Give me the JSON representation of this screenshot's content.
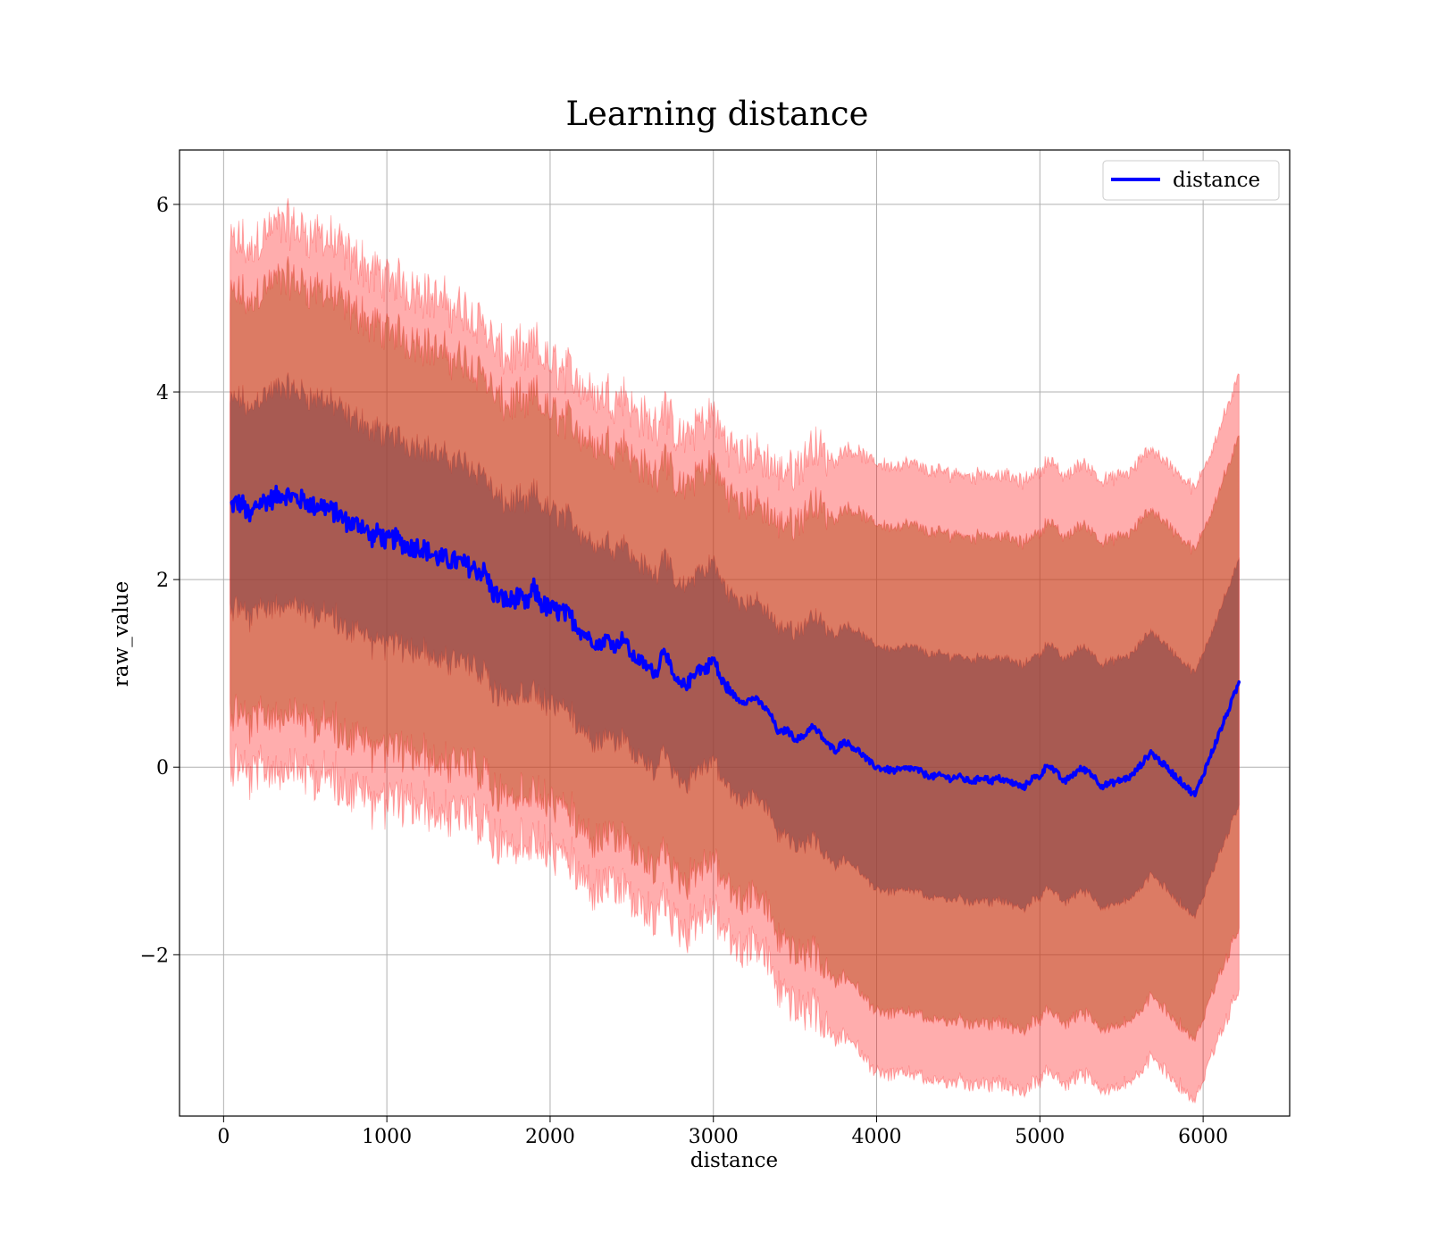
{
  "chart_data": {
    "type": "line",
    "title": "Learning distance",
    "xlabel": "distance",
    "ylabel": "raw_value",
    "xlim": [
      -270,
      6530
    ],
    "ylim": [
      -3.72,
      6.58
    ],
    "x_ticks": [
      0,
      1000,
      2000,
      3000,
      4000,
      5000,
      6000
    ],
    "y_ticks": [
      -2,
      0,
      2,
      4,
      6
    ],
    "x_tick_labels": [
      "0",
      "1000",
      "2000",
      "3000",
      "4000",
      "5000",
      "6000"
    ],
    "y_tick_labels": [
      "−2",
      "0",
      "2",
      "4",
      "6"
    ],
    "grid": true,
    "legend": {
      "position": "top-right",
      "entries": [
        "distance"
      ]
    },
    "colors": {
      "line": "#0000ff",
      "band": "#ff0000",
      "band_alpha": 0.32
    },
    "series": [
      {
        "name": "distance",
        "x": [
          40,
          80,
          120,
          160,
          200,
          250,
          300,
          350,
          400,
          450,
          500,
          550,
          600,
          650,
          700,
          750,
          800,
          850,
          900,
          950,
          1000,
          1050,
          1100,
          1150,
          1200,
          1250,
          1300,
          1350,
          1400,
          1450,
          1500,
          1550,
          1600,
          1650,
          1700,
          1750,
          1800,
          1850,
          1900,
          1950,
          2000,
          2050,
          2100,
          2150,
          2200,
          2250,
          2300,
          2350,
          2400,
          2450,
          2500,
          2550,
          2600,
          2650,
          2700,
          2750,
          2800,
          2850,
          2900,
          2950,
          3000,
          3050,
          3100,
          3150,
          3200,
          3250,
          3300,
          3350,
          3400,
          3450,
          3500,
          3550,
          3600,
          3650,
          3700,
          3750,
          3800,
          3850,
          3900,
          3950,
          4000,
          4050,
          4100,
          4150,
          4200,
          4250,
          4300,
          4350,
          4400,
          4450,
          4500,
          4550,
          4600,
          4650,
          4700,
          4750,
          4800,
          4850,
          4900,
          4950,
          5000,
          5050,
          5100,
          5150,
          5200,
          5250,
          5300,
          5380,
          5460,
          5560,
          5680,
          5950,
          6220
        ],
        "y": [
          2.78,
          2.82,
          2.8,
          2.64,
          2.8,
          2.84,
          2.86,
          2.92,
          2.9,
          2.86,
          2.84,
          2.78,
          2.8,
          2.74,
          2.7,
          2.62,
          2.58,
          2.6,
          2.44,
          2.5,
          2.4,
          2.44,
          2.38,
          2.34,
          2.36,
          2.3,
          2.24,
          2.22,
          2.2,
          2.18,
          2.14,
          2.1,
          2.08,
          1.86,
          1.8,
          1.76,
          1.82,
          1.72,
          1.9,
          1.74,
          1.68,
          1.66,
          1.62,
          1.56,
          1.44,
          1.36,
          1.3,
          1.38,
          1.28,
          1.4,
          1.18,
          1.14,
          1.06,
          1.0,
          1.3,
          0.96,
          0.86,
          0.9,
          1.06,
          1.04,
          1.16,
          0.92,
          0.82,
          0.72,
          0.7,
          0.74,
          0.66,
          0.56,
          0.36,
          0.4,
          0.3,
          0.32,
          0.44,
          0.36,
          0.24,
          0.18,
          0.28,
          0.22,
          0.16,
          0.06,
          0.0,
          -0.02,
          -0.04,
          -0.03,
          -0.01,
          -0.03,
          -0.08,
          -0.1,
          -0.09,
          -0.12,
          -0.1,
          -0.14,
          -0.15,
          -0.1,
          -0.15,
          -0.12,
          -0.15,
          -0.18,
          -0.22,
          -0.12,
          -0.1,
          0.04,
          -0.06,
          -0.16,
          -0.08,
          -0.02,
          -0.04,
          -0.2,
          -0.16,
          -0.1,
          0.16,
          -0.3,
          0.9
        ]
      }
    ],
    "bands": {
      "x": [
        40,
        300,
        600,
        900,
        1200,
        1500,
        1650,
        1900,
        2200,
        2500,
        2800,
        3050,
        3300,
        3600,
        4000,
        4500,
        4800,
        5000,
        5300,
        5560,
        5680,
        5950,
        6220
      ],
      "sd": [
        1.1,
        1.15,
        1.15,
        1.12,
        1.1,
        1.08,
        1.05,
        1.05,
        1.05,
        1.05,
        1.05,
        1.05,
        1.05,
        1.2,
        1.3,
        1.3,
        1.3,
        1.3,
        1.3,
        1.3,
        1.3,
        1.3,
        1.3
      ],
      "multiples": [
        1,
        2,
        2.5
      ]
    }
  }
}
